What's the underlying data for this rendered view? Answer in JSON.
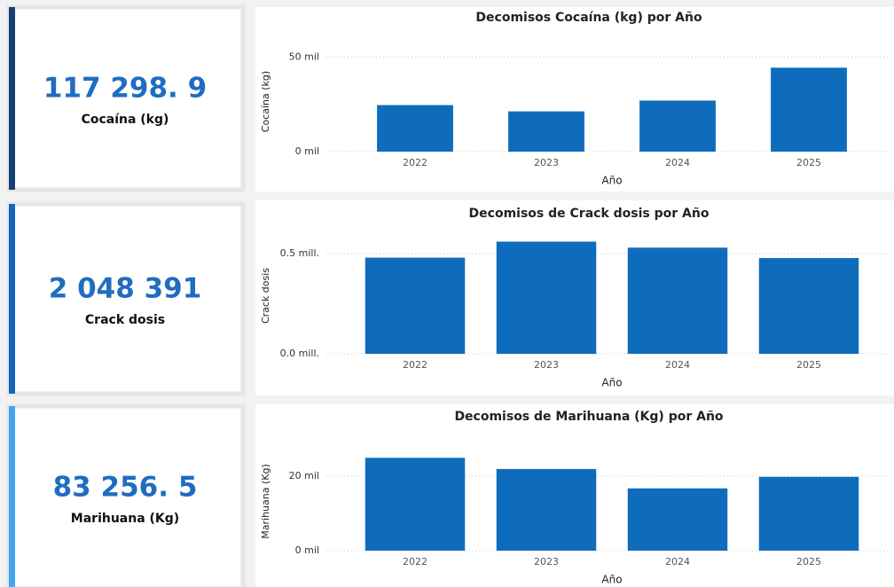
{
  "cards": [
    {
      "value": "117 298. 9",
      "label": "Cocaína (kg)",
      "color": "#173f73"
    },
    {
      "value": "2 048 391",
      "label": "Crack dosis",
      "color": "#1565c0"
    },
    {
      "value": "83 256. 5",
      "label": "Marihuana (Kg)",
      "color": "#42a5f5"
    }
  ],
  "chart_data": [
    {
      "type": "bar",
      "title": "Decomisos Cocaína (kg) por Año",
      "x_label": "Año",
      "y_label": "Cocaína (kg)",
      "categories": [
        "2022",
        "2023",
        "2024",
        "2025"
      ],
      "values": [
        24600,
        21300,
        27000,
        44400
      ],
      "color": "#0f6cbd",
      "ylim": [
        0,
        53000
      ],
      "yticks": [
        {
          "value": 0,
          "label": "0 mil"
        },
        {
          "value": 50000,
          "label": "50 mil"
        }
      ],
      "grid": true
    },
    {
      "type": "bar",
      "title": "Decomisos de Crack dosis por Año",
      "x_label": "Año",
      "y_label": "Crack dosis",
      "categories": [
        "2022",
        "2023",
        "2024",
        "2025"
      ],
      "values": [
        480000,
        560000,
        530000,
        478000
      ],
      "color": "#0f6cbd",
      "ylim": [
        0,
        580000
      ],
      "yticks": [
        {
          "value": 0,
          "label": "0.0 mill."
        },
        {
          "value": 500000,
          "label": "0.5 mill."
        }
      ],
      "grid": true
    },
    {
      "type": "bar",
      "title": "Decomisos de Marihuana (Kg) por Año",
      "x_label": "Año",
      "y_label": "Marihuana (Kg)",
      "categories": [
        "2022",
        "2023",
        "2024",
        "2025"
      ],
      "values": [
        24900,
        21900,
        16700,
        19800
      ],
      "color": "#0f6cbd",
      "ylim": [
        0,
        26400
      ],
      "yticks": [
        {
          "value": 0,
          "label": "0 mil"
        },
        {
          "value": 20000,
          "label": "20 mil"
        }
      ],
      "grid": true
    }
  ]
}
